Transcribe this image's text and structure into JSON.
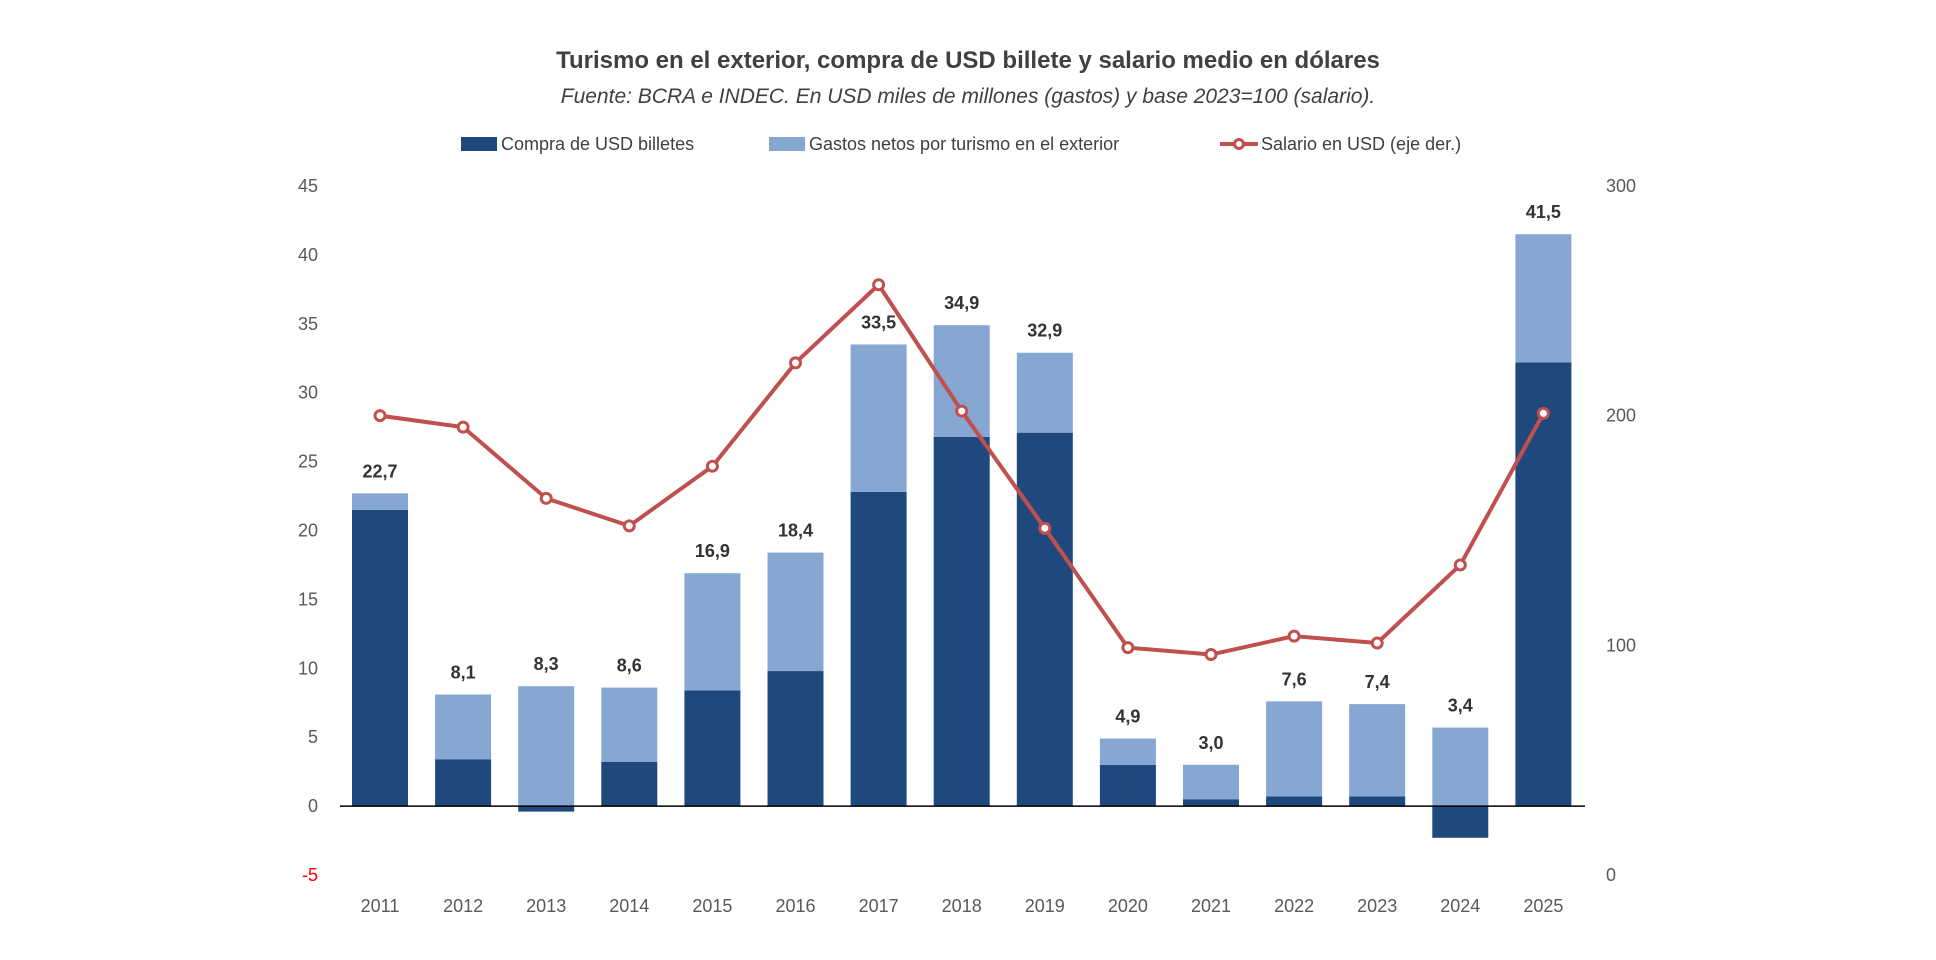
{
  "colors": {
    "compra": "#1f497d",
    "gastos": "#87a7d3",
    "salario": "#c0504d",
    "zero_line": "#000000",
    "negative_tick": "#ff0000"
  },
  "chart_data": {
    "type": "bar",
    "stacked": true,
    "title": "Turismo  en el exterior, compra de USD billete y salario medio en dólares",
    "subtitle": "Fuente: BCRA e INDEC. En USD miles de  millones (gastos) y base 2023=100 (salario).",
    "categories": [
      "2011",
      "2012",
      "2013",
      "2014",
      "2015",
      "2016",
      "2017",
      "2018",
      "2019",
      "2020",
      "2021",
      "2022",
      "2023",
      "2024",
      "2025"
    ],
    "series": [
      {
        "name": "Compra de USD billetes",
        "type": "bar",
        "axis": "left",
        "values": [
          21.5,
          3.4,
          -0.4,
          3.2,
          8.4,
          9.8,
          22.8,
          26.8,
          27.1,
          3.0,
          0.5,
          0.7,
          0.7,
          -2.3,
          32.2
        ]
      },
      {
        "name": "Gastos netos por turismo en el exterior",
        "type": "bar",
        "axis": "left",
        "values": [
          1.2,
          4.7,
          8.7,
          5.4,
          8.5,
          8.6,
          10.7,
          8.1,
          5.8,
          1.9,
          2.5,
          6.9,
          6.7,
          5.7,
          9.3
        ]
      },
      {
        "name": "Salario en USD (eje der.)",
        "type": "line",
        "axis": "right",
        "values": [
          200,
          195,
          164,
          152,
          178,
          223,
          257,
          202,
          151,
          99,
          96,
          104,
          101,
          135,
          201
        ]
      }
    ],
    "total_labels": [
      "22,7",
      "8,1",
      "8,3",
      "8,6",
      "16,9",
      "18,4",
      "33,5",
      "34,9",
      "32,9",
      "4,9",
      "3,0",
      "7,6",
      "7,4",
      "3,4",
      "41,5"
    ],
    "y_left": {
      "ylim": [
        -5,
        45
      ],
      "ticks": [
        "45",
        "40",
        "35",
        "30",
        "25",
        "20",
        "15",
        "10",
        "5",
        "0",
        "-5"
      ],
      "tick_values": [
        45,
        40,
        35,
        30,
        25,
        20,
        15,
        10,
        5,
        0,
        -5
      ]
    },
    "y_right": {
      "ylim": [
        0,
        300
      ],
      "ticks": [
        "300",
        "200",
        "100",
        "0"
      ],
      "tick_values": [
        300,
        200,
        100,
        0
      ]
    },
    "xlabel": "",
    "ylabel": "",
    "grid": false,
    "legend_position": "top-center"
  }
}
